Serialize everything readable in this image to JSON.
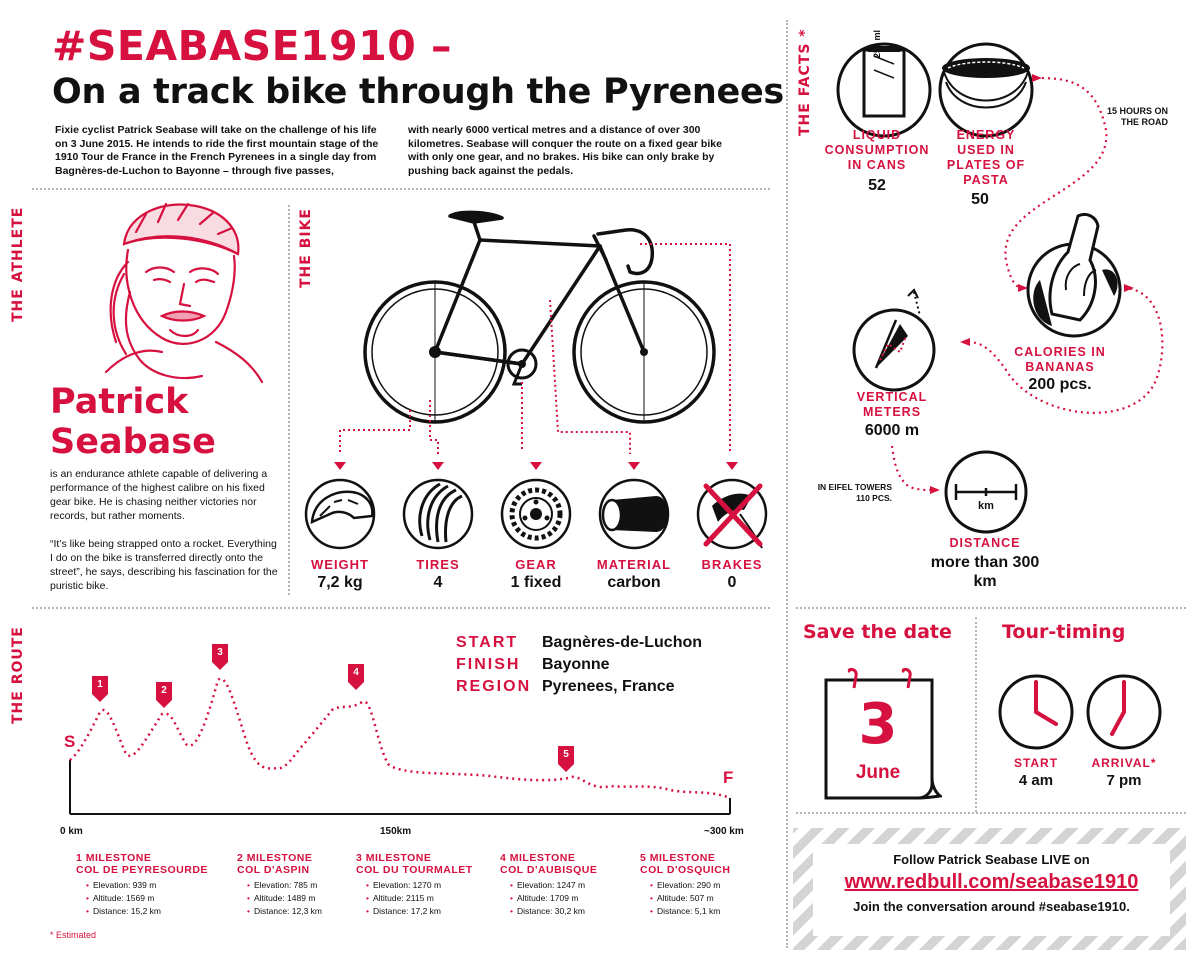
{
  "header": {
    "hashtag_title": "#SEABASE1910 –",
    "subtitle": "On a track bike through the Pyrenees",
    "intro_col1": "Fixie cyclist Patrick Seabase will take on the challenge of his life on 3 June 2015. He intends to ride the first mountain stage of the 1910 Tour de France in the French Pyrenees in a single day from Bagnères-de-Luchon to Bayonne – through five passes,",
    "intro_col2": "with nearly 6000 vertical metres and a distance of over 300 kilometres. Seabase will conquer the route on a fixed gear bike with only one gear, and no brakes. His bike can only brake by pushing back against the pedals."
  },
  "sections": {
    "athlete": "THE ATHLETE",
    "bike": "THE BIKE",
    "facts": "THE FACTS *",
    "route": "THE ROUTE"
  },
  "athlete": {
    "first_name": "Patrick",
    "last_name": "Seabase",
    "bio": "is an endurance athlete capable of delivering a performance of the highest calibre on his fixed gear bike. He is chasing neither victories nor records, but rather moments.",
    "quote": "“It’s like being strapped onto a rocket. Everything I do on the bike is transferred directly onto the street”, he says, describing his fascination for the puristic bike."
  },
  "bike_parts": [
    {
      "label": "WEIGHT",
      "value": "7,2 kg",
      "icon": "helmet-icon"
    },
    {
      "label": "TIRES",
      "value": "4",
      "icon": "tires-icon"
    },
    {
      "label": "GEAR",
      "value": "1 fixed",
      "icon": "gear-icon"
    },
    {
      "label": "MATERIAL",
      "value": "carbon",
      "icon": "tube-icon"
    },
    {
      "label": "BRAKES",
      "value": "0",
      "icon": "crossed-brake-icon"
    }
  ],
  "facts": {
    "can_label": "250 ml",
    "liquid_label": "LIQUID CONSUMPTION IN CANS",
    "liquid_value": "52",
    "energy_label": "ENERGY USED IN PLATES OF PASTA",
    "energy_value": "50",
    "hours_note": "15 HOURS ON THE ROAD",
    "calories_label": "CALORIES IN BANANAS",
    "calories_value": "200 pcs.",
    "vertical_label": "VERTICAL METERS",
    "vertical_value": "6000 m",
    "eiffel_note": "IN EIFEL TOWERS 110 PCS.",
    "distance_icon_label": "km",
    "distance_label": "DISTANCE",
    "distance_value": "more than 300 km"
  },
  "route": {
    "start_key": "START",
    "start_value": "Bagnères-de-Luchon",
    "finish_key": "FINISH",
    "finish_value": "Bayonne",
    "region_key": "REGION",
    "region_value": "Pyrenees, France",
    "start_marker": "S",
    "finish_marker": "F",
    "axis_labels": [
      "0 km",
      "150km",
      "~300 km"
    ],
    "peak_numbers": [
      "1",
      "2",
      "3",
      "4",
      "5"
    ],
    "milestones": [
      {
        "number": "1 MILESTONE",
        "name": "COL DE PEYRESOURDE",
        "elevation": "Elevation: 939 m",
        "altitude": "Altitude: 1569 m",
        "distance": "Distance: 15,2 km"
      },
      {
        "number": "2 MILESTONE",
        "name": "COL D'ASPIN",
        "elevation": "Elevation:  785 m",
        "altitude": "Altitude: 1489 m",
        "distance": "Distance: 12,3 km"
      },
      {
        "number": "3 MILESTONE",
        "name": "COL DU TOURMALET",
        "elevation": "Elevation:  1270 m",
        "altitude": "Altitude: 2115 m",
        "distance": "Distance: 17,2 km"
      },
      {
        "number": "4 MILESTONE",
        "name": "COL D'AUBISQUE",
        "elevation": "Elevation: 1247 m",
        "altitude": "Altitude: 1709 m",
        "distance": "Distance: 30,2 km"
      },
      {
        "number": "5 MILESTONE",
        "name": "COL D'OSQUICH",
        "elevation": "Elevation:  290 m",
        "altitude": "Altitude: 507    m",
        "distance": "Distance: 5,1 km"
      }
    ],
    "footnote": "* Estimated"
  },
  "save_the_date": {
    "title": "Save the date",
    "day": "3",
    "month": "June"
  },
  "tour_timing": {
    "title": "Tour-timing",
    "start_label": "START",
    "start_value": "4 am",
    "arrival_label": "ARRIVAL*",
    "arrival_value": "7 pm"
  },
  "follow": {
    "line1": "Follow Patrick Seabase LIVE on",
    "url": "www.redbull.com/seabase1910",
    "line3": "Join the conversation around #seabase1910."
  },
  "colors": {
    "accent": "#d6113f",
    "dots": "#b5b5b5",
    "ink": "#111111"
  }
}
